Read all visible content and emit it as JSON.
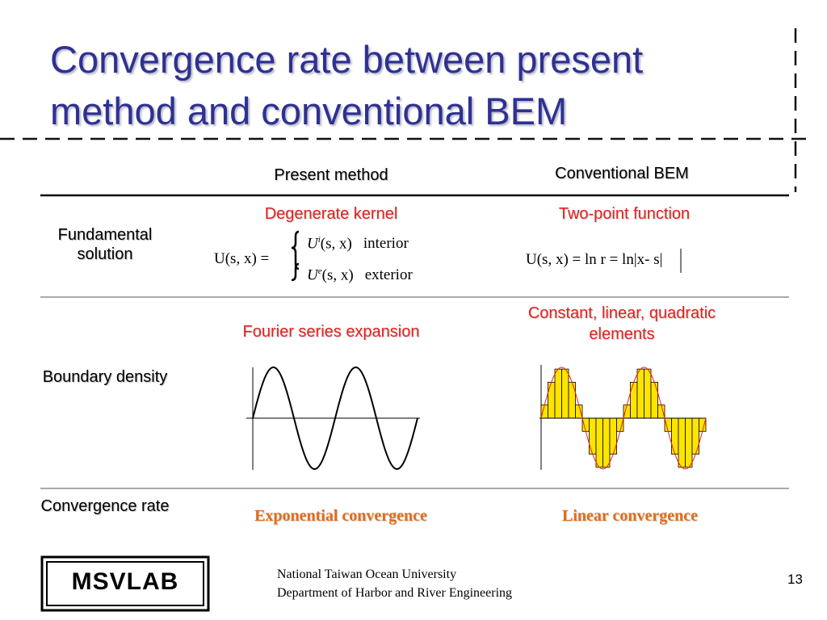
{
  "header": {
    "title_lines": [
      "Convergence rate between present",
      "method and conventional BEM"
    ]
  },
  "table": {
    "columns": [
      "Present method",
      "Conventional BEM"
    ],
    "rows": [
      {
        "label": "Fundamental solution",
        "present": "Degenerate kernel",
        "conventional": "Two-point function",
        "present_formula": {
          "lhs": "U(s, x) =",
          "cases": [
            {
              "symbol": "U",
              "sup": "i",
              "arg": "(s, x)",
              "region": "interior"
            },
            {
              "symbol": "U",
              "sup": "e",
              "arg": "(s, x)",
              "region": "exterior"
            }
          ]
        },
        "conventional_formula": "U(s, x) = ln r = ln|x- s|"
      },
      {
        "label": "Boundary density",
        "present": "Fourier series expansion",
        "conventional": "Constant, linear, quadratic elements"
      },
      {
        "label": "Convergence rate",
        "present": "Exponential convergence",
        "conventional": "Linear convergence"
      }
    ]
  },
  "footer": {
    "logo": "MSVLAB",
    "lines": [
      "National Taiwan Ocean University",
      "Department of Harbor and River Engineering"
    ],
    "page": 13
  }
}
